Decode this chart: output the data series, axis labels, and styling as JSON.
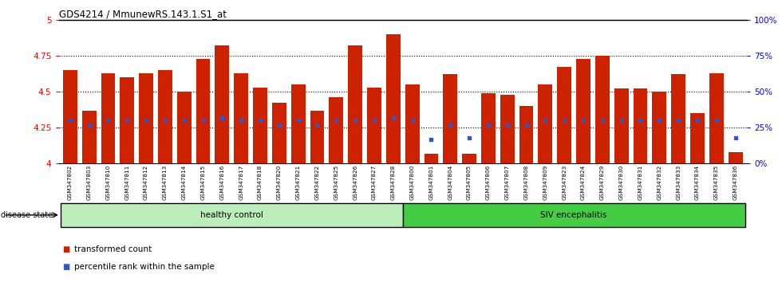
{
  "title": "GDS4214 / MmunewRS.143.1.S1_at",
  "samples": [
    "GSM347802",
    "GSM347803",
    "GSM347810",
    "GSM347811",
    "GSM347812",
    "GSM347813",
    "GSM347814",
    "GSM347815",
    "GSM347816",
    "GSM347817",
    "GSM347818",
    "GSM347820",
    "GSM347821",
    "GSM347822",
    "GSM347825",
    "GSM347826",
    "GSM347827",
    "GSM347828",
    "GSM347800",
    "GSM347801",
    "GSM347804",
    "GSM347805",
    "GSM347806",
    "GSM347807",
    "GSM347808",
    "GSM347809",
    "GSM347823",
    "GSM347824",
    "GSM347829",
    "GSM347830",
    "GSM347831",
    "GSM347832",
    "GSM347833",
    "GSM347834",
    "GSM347835",
    "GSM347836"
  ],
  "bar_values": [
    4.65,
    4.37,
    4.63,
    4.6,
    4.63,
    4.65,
    4.5,
    4.73,
    4.82,
    4.63,
    4.53,
    4.42,
    4.55,
    4.37,
    4.46,
    4.82,
    4.53,
    4.9,
    4.55,
    4.07,
    4.62,
    4.07,
    4.49,
    4.48,
    4.4,
    4.55,
    4.67,
    4.73,
    4.75,
    4.52,
    4.52,
    4.5,
    4.62,
    4.35,
    4.63,
    4.08
  ],
  "percentile_values": [
    4.3,
    4.27,
    4.3,
    4.3,
    4.3,
    4.3,
    4.3,
    4.3,
    4.32,
    4.3,
    4.3,
    4.27,
    4.3,
    4.27,
    4.3,
    4.3,
    4.3,
    4.32,
    4.3,
    4.17,
    4.27,
    4.18,
    4.27,
    4.27,
    4.27,
    4.3,
    4.3,
    4.3,
    4.3,
    4.3,
    4.3,
    4.3,
    4.3,
    4.3,
    4.3,
    4.18
  ],
  "n_healthy": 18,
  "n_siv": 18,
  "bar_color": "#cc2200",
  "dot_color": "#3355cc",
  "healthy_color": "#bbeebb",
  "siv_color": "#44cc44",
  "healthy_label": "healthy control",
  "siv_label": "SIV encephalitis",
  "disease_state_label": "disease state",
  "ymin": 4.0,
  "ymax": 5.0,
  "yticks": [
    4.0,
    4.25,
    4.5,
    4.75,
    5.0
  ],
  "ytick_labels": [
    "4",
    "4.25",
    "4.5",
    "4.75",
    "5"
  ],
  "right_yticks": [
    0,
    25,
    50,
    75,
    100
  ],
  "right_ytick_labels": [
    "0%",
    "25%",
    "50%",
    "75%",
    "100%"
  ],
  "dotted_lines": [
    4.25,
    4.5,
    4.75
  ],
  "legend_transformed": "transformed count",
  "legend_percentile": "percentile rank within the sample"
}
